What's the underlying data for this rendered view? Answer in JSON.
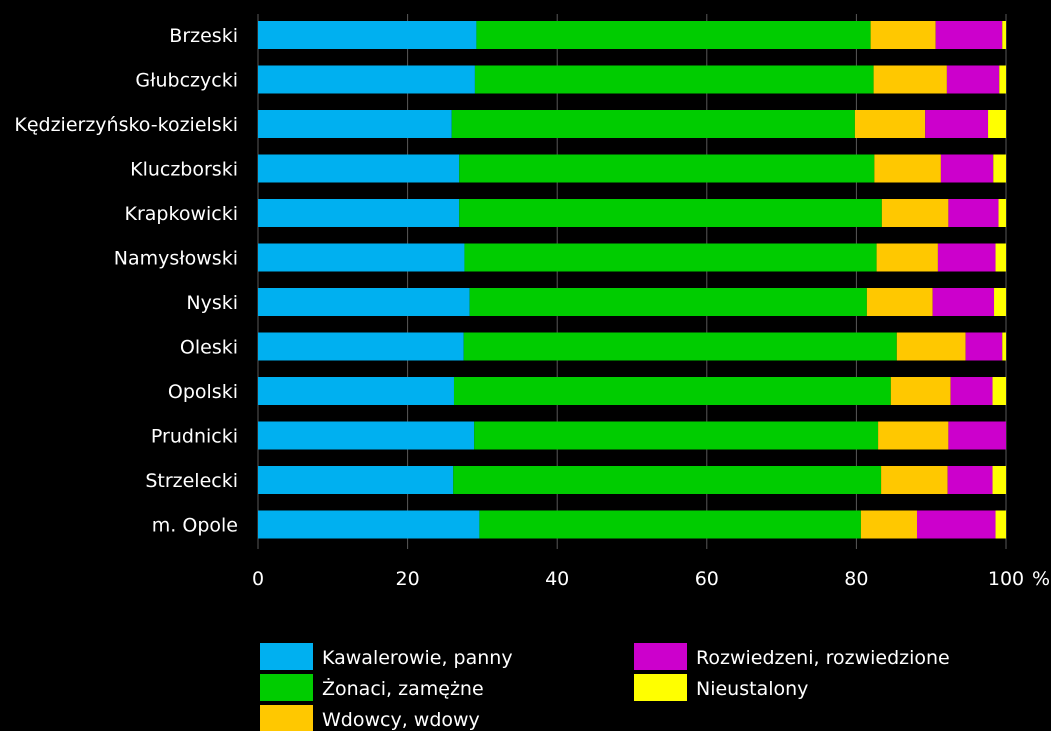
{
  "chart_data": {
    "type": "bar",
    "orientation": "horizontal",
    "stacked": true,
    "categories": [
      "Brzeski",
      "Głubczycki",
      "Kędzierzyńsko-kozielski",
      "Kluczborski",
      "Krapkowicki",
      "Namysłowski",
      "Nyski",
      "Oleski",
      "Opolski",
      "Prudnicki",
      "Strzelecki",
      "m. Opole"
    ],
    "series": [
      {
        "name": "Kawalerowie, panny",
        "color": "#00B0F0",
        "values": [
          29.2,
          29.0,
          25.9,
          26.9,
          26.9,
          27.6,
          28.3,
          27.5,
          26.2,
          28.9,
          26.1,
          29.6
        ]
      },
      {
        "name": "Żonaci, zamężne",
        "color": "#00CC00",
        "values": [
          52.7,
          53.3,
          53.9,
          55.5,
          56.5,
          55.1,
          53.1,
          57.9,
          58.4,
          54.0,
          57.2,
          51.0
        ]
      },
      {
        "name": "Wdowcy, wdowy",
        "color": "#FFC800",
        "values": [
          8.7,
          9.8,
          9.4,
          8.9,
          8.9,
          8.2,
          8.8,
          9.2,
          8.0,
          9.4,
          8.9,
          7.5
        ]
      },
      {
        "name": "Rozwiedzeni, rozwiedzione",
        "color": "#CC00CC",
        "values": [
          8.9,
          7.0,
          8.4,
          7.0,
          6.7,
          7.7,
          8.2,
          4.9,
          5.6,
          7.7,
          6.0,
          10.5
        ]
      },
      {
        "name": "Nieustalony",
        "color": "#FFFF00",
        "values": [
          0.5,
          0.9,
          2.4,
          1.7,
          1.0,
          1.4,
          1.6,
          0.5,
          1.8,
          0.0,
          1.8,
          1.4
        ]
      }
    ],
    "x_ticks": [
      "0",
      "20",
      "40",
      "60",
      "80",
      "100"
    ],
    "x_unit": "%",
    "xlim": [
      0,
      100
    ],
    "grid": true,
    "legend_position": "bottom"
  }
}
